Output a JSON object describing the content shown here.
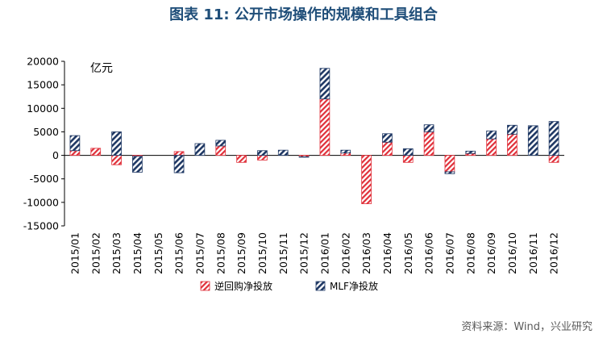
{
  "title": "图表 11: 公开市场操作的规模和工具组合",
  "source": "资料来源：Wind，兴业研究",
  "chart_data": {
    "type": "bar",
    "stacked": true,
    "unit": "亿元",
    "ylim": [
      -15000,
      20000
    ],
    "yticks": [
      "20000",
      "15000",
      "10000",
      "5000",
      "0",
      "-5000",
      "-10000",
      "-15000"
    ],
    "categories": [
      "2015/01",
      "2015/02",
      "2015/03",
      "2015/04",
      "2015/05",
      "2015/06",
      "2015/07",
      "2015/08",
      "2015/09",
      "2015/10",
      "2015/11",
      "2015/12",
      "2016/01",
      "2016/02",
      "2016/03",
      "2016/04",
      "2016/05",
      "2016/06",
      "2016/07",
      "2016/08",
      "2016/09",
      "2016/10",
      "2016/11",
      "2016/12"
    ],
    "series": [
      {
        "name": "逆回购净投放",
        "color": "#e0303a",
        "pattern": "diag-red",
        "values": [
          1000,
          1500,
          -2000,
          -200,
          0,
          800,
          0,
          2000,
          -1500,
          -1000,
          0,
          -300,
          12000,
          500,
          -10300,
          2800,
          -1500,
          5000,
          -3500,
          400,
          3500,
          4500,
          0,
          -1500
        ]
      },
      {
        "name": "MLF净投放",
        "color": "#1f3864",
        "pattern": "diag-blue",
        "values": [
          3200,
          0,
          5000,
          -3400,
          0,
          -3700,
          2500,
          1200,
          0,
          1000,
          1100,
          -100,
          6500,
          600,
          0,
          1800,
          1400,
          1500,
          -400,
          500,
          1700,
          1900,
          6300,
          7200
        ]
      }
    ],
    "legend_position": "bottom",
    "grid": false
  }
}
